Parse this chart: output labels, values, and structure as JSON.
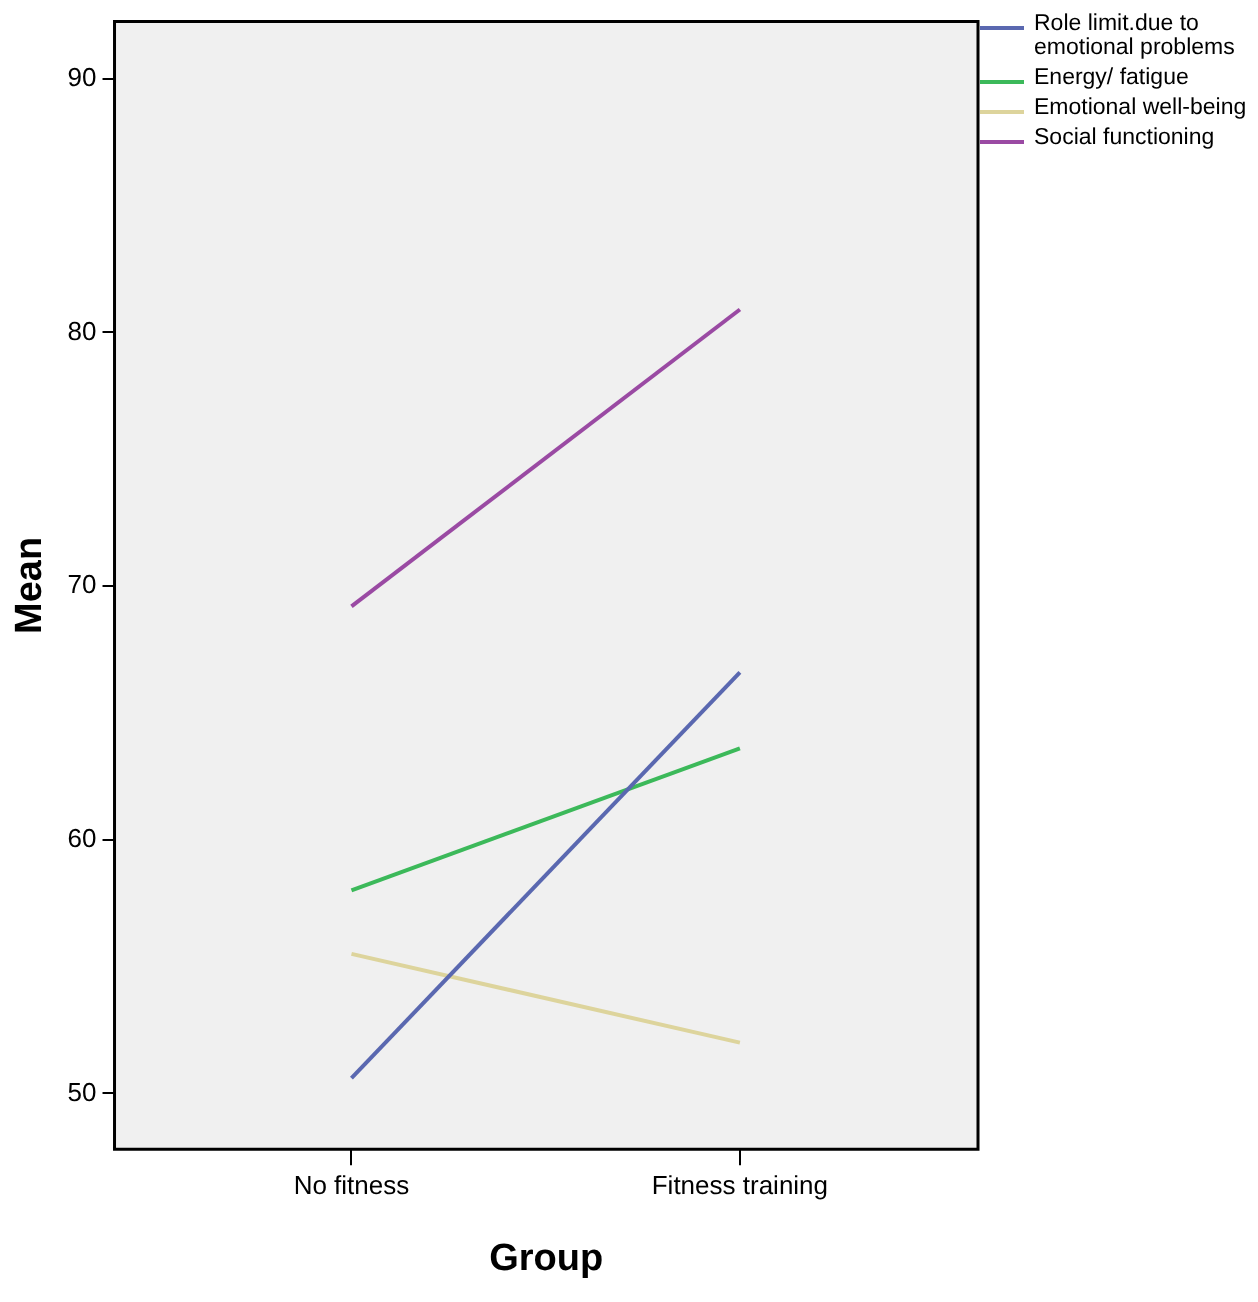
{
  "chart_data": {
    "type": "line",
    "xlabel": "Group",
    "ylabel": "Mean",
    "categories": [
      "No fitness",
      "Fitness training"
    ],
    "series": [
      {
        "name": "Role limit.due to emotional problems",
        "color": "#5a68b0",
        "values": [
          50.6,
          66.6
        ]
      },
      {
        "name": "Energy/ fatigue",
        "color": "#3cb95a",
        "values": [
          58.0,
          63.6
        ]
      },
      {
        "name": "Emotional well-being",
        "color": "#ddd49c",
        "values": [
          55.5,
          52.0
        ]
      },
      {
        "name": "Social functioning",
        "color": "#9a4aa3",
        "values": [
          69.2,
          80.9
        ]
      }
    ],
    "ylim": [
      47.8,
      92.25
    ],
    "yticks": [
      50,
      60,
      70,
      80,
      90
    ],
    "grid": false,
    "legend": "top right",
    "marker": "none",
    "line_style": "solid"
  }
}
